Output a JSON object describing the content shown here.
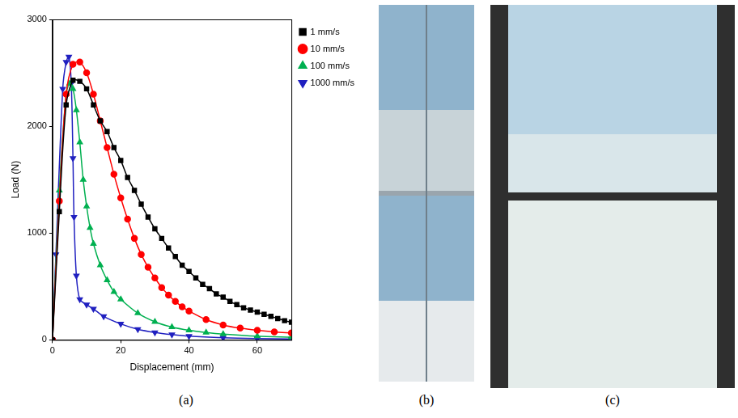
{
  "chart_data": {
    "type": "line",
    "xlabel": "Displacement (mm)",
    "ylabel": "Load (N)",
    "xlim": [
      0,
      70
    ],
    "xticks": [
      0,
      20,
      40,
      60
    ],
    "ylim": [
      0,
      3000
    ],
    "yticks": [
      0,
      1000,
      2000,
      3000
    ],
    "grid": false,
    "legend": "right",
    "series": [
      {
        "name": "1 mm/s",
        "color": "#000000",
        "marker": "square",
        "x": [
          0,
          2,
          4,
          6,
          8,
          10,
          12,
          14,
          16,
          18,
          20,
          22,
          24,
          26,
          28,
          30,
          32,
          34,
          36,
          38,
          40,
          42,
          44,
          46,
          48,
          50,
          52,
          54,
          56,
          58,
          60,
          62,
          64,
          66,
          68,
          70
        ],
        "values": [
          0,
          1200,
          2200,
          2430,
          2420,
          2350,
          2200,
          2050,
          1950,
          1800,
          1680,
          1520,
          1400,
          1270,
          1150,
          1040,
          950,
          860,
          780,
          700,
          640,
          580,
          520,
          480,
          430,
          400,
          360,
          330,
          300,
          280,
          260,
          240,
          220,
          200,
          180,
          165
        ]
      },
      {
        "name": "10 mm/s",
        "color": "#ff0000",
        "marker": "circle",
        "x": [
          0,
          2,
          4,
          6,
          8,
          10,
          12,
          14,
          16,
          18,
          20,
          22,
          24,
          26,
          28,
          30,
          32,
          34,
          36,
          38,
          40,
          45,
          50,
          55,
          60,
          65,
          70
        ],
        "values": [
          0,
          1300,
          2300,
          2580,
          2600,
          2500,
          2300,
          2050,
          1800,
          1550,
          1330,
          1130,
          950,
          800,
          680,
          580,
          490,
          420,
          360,
          310,
          270,
          190,
          140,
          110,
          90,
          75,
          65
        ]
      },
      {
        "name": "100 mm/s",
        "color": "#00b050",
        "marker": "triangle",
        "x": [
          0,
          2,
          4,
          5,
          6,
          7,
          8,
          9,
          10,
          11,
          12,
          14,
          16,
          18,
          20,
          25,
          30,
          35,
          40,
          45,
          50,
          60,
          70
        ],
        "values": [
          0,
          1400,
          2300,
          2400,
          2350,
          2150,
          1850,
          1500,
          1250,
          1050,
          900,
          700,
          560,
          450,
          380,
          250,
          170,
          120,
          90,
          70,
          55,
          35,
          25
        ]
      },
      {
        "name": "1000 mm/s",
        "color": "#2020c0",
        "marker": "triangle-down",
        "x": [
          0,
          1,
          3,
          4,
          4.8,
          5.5,
          6,
          6.3,
          7,
          8,
          10,
          12,
          15,
          20,
          25,
          30,
          35,
          40,
          50,
          60,
          70
        ],
        "values": [
          0,
          800,
          2350,
          2600,
          2650,
          2400,
          1700,
          1150,
          600,
          380,
          330,
          290,
          220,
          150,
          100,
          70,
          50,
          35,
          20,
          12,
          8
        ]
      }
    ]
  },
  "panel_labels": [
    "(a)",
    "(b)",
    "(c)"
  ]
}
